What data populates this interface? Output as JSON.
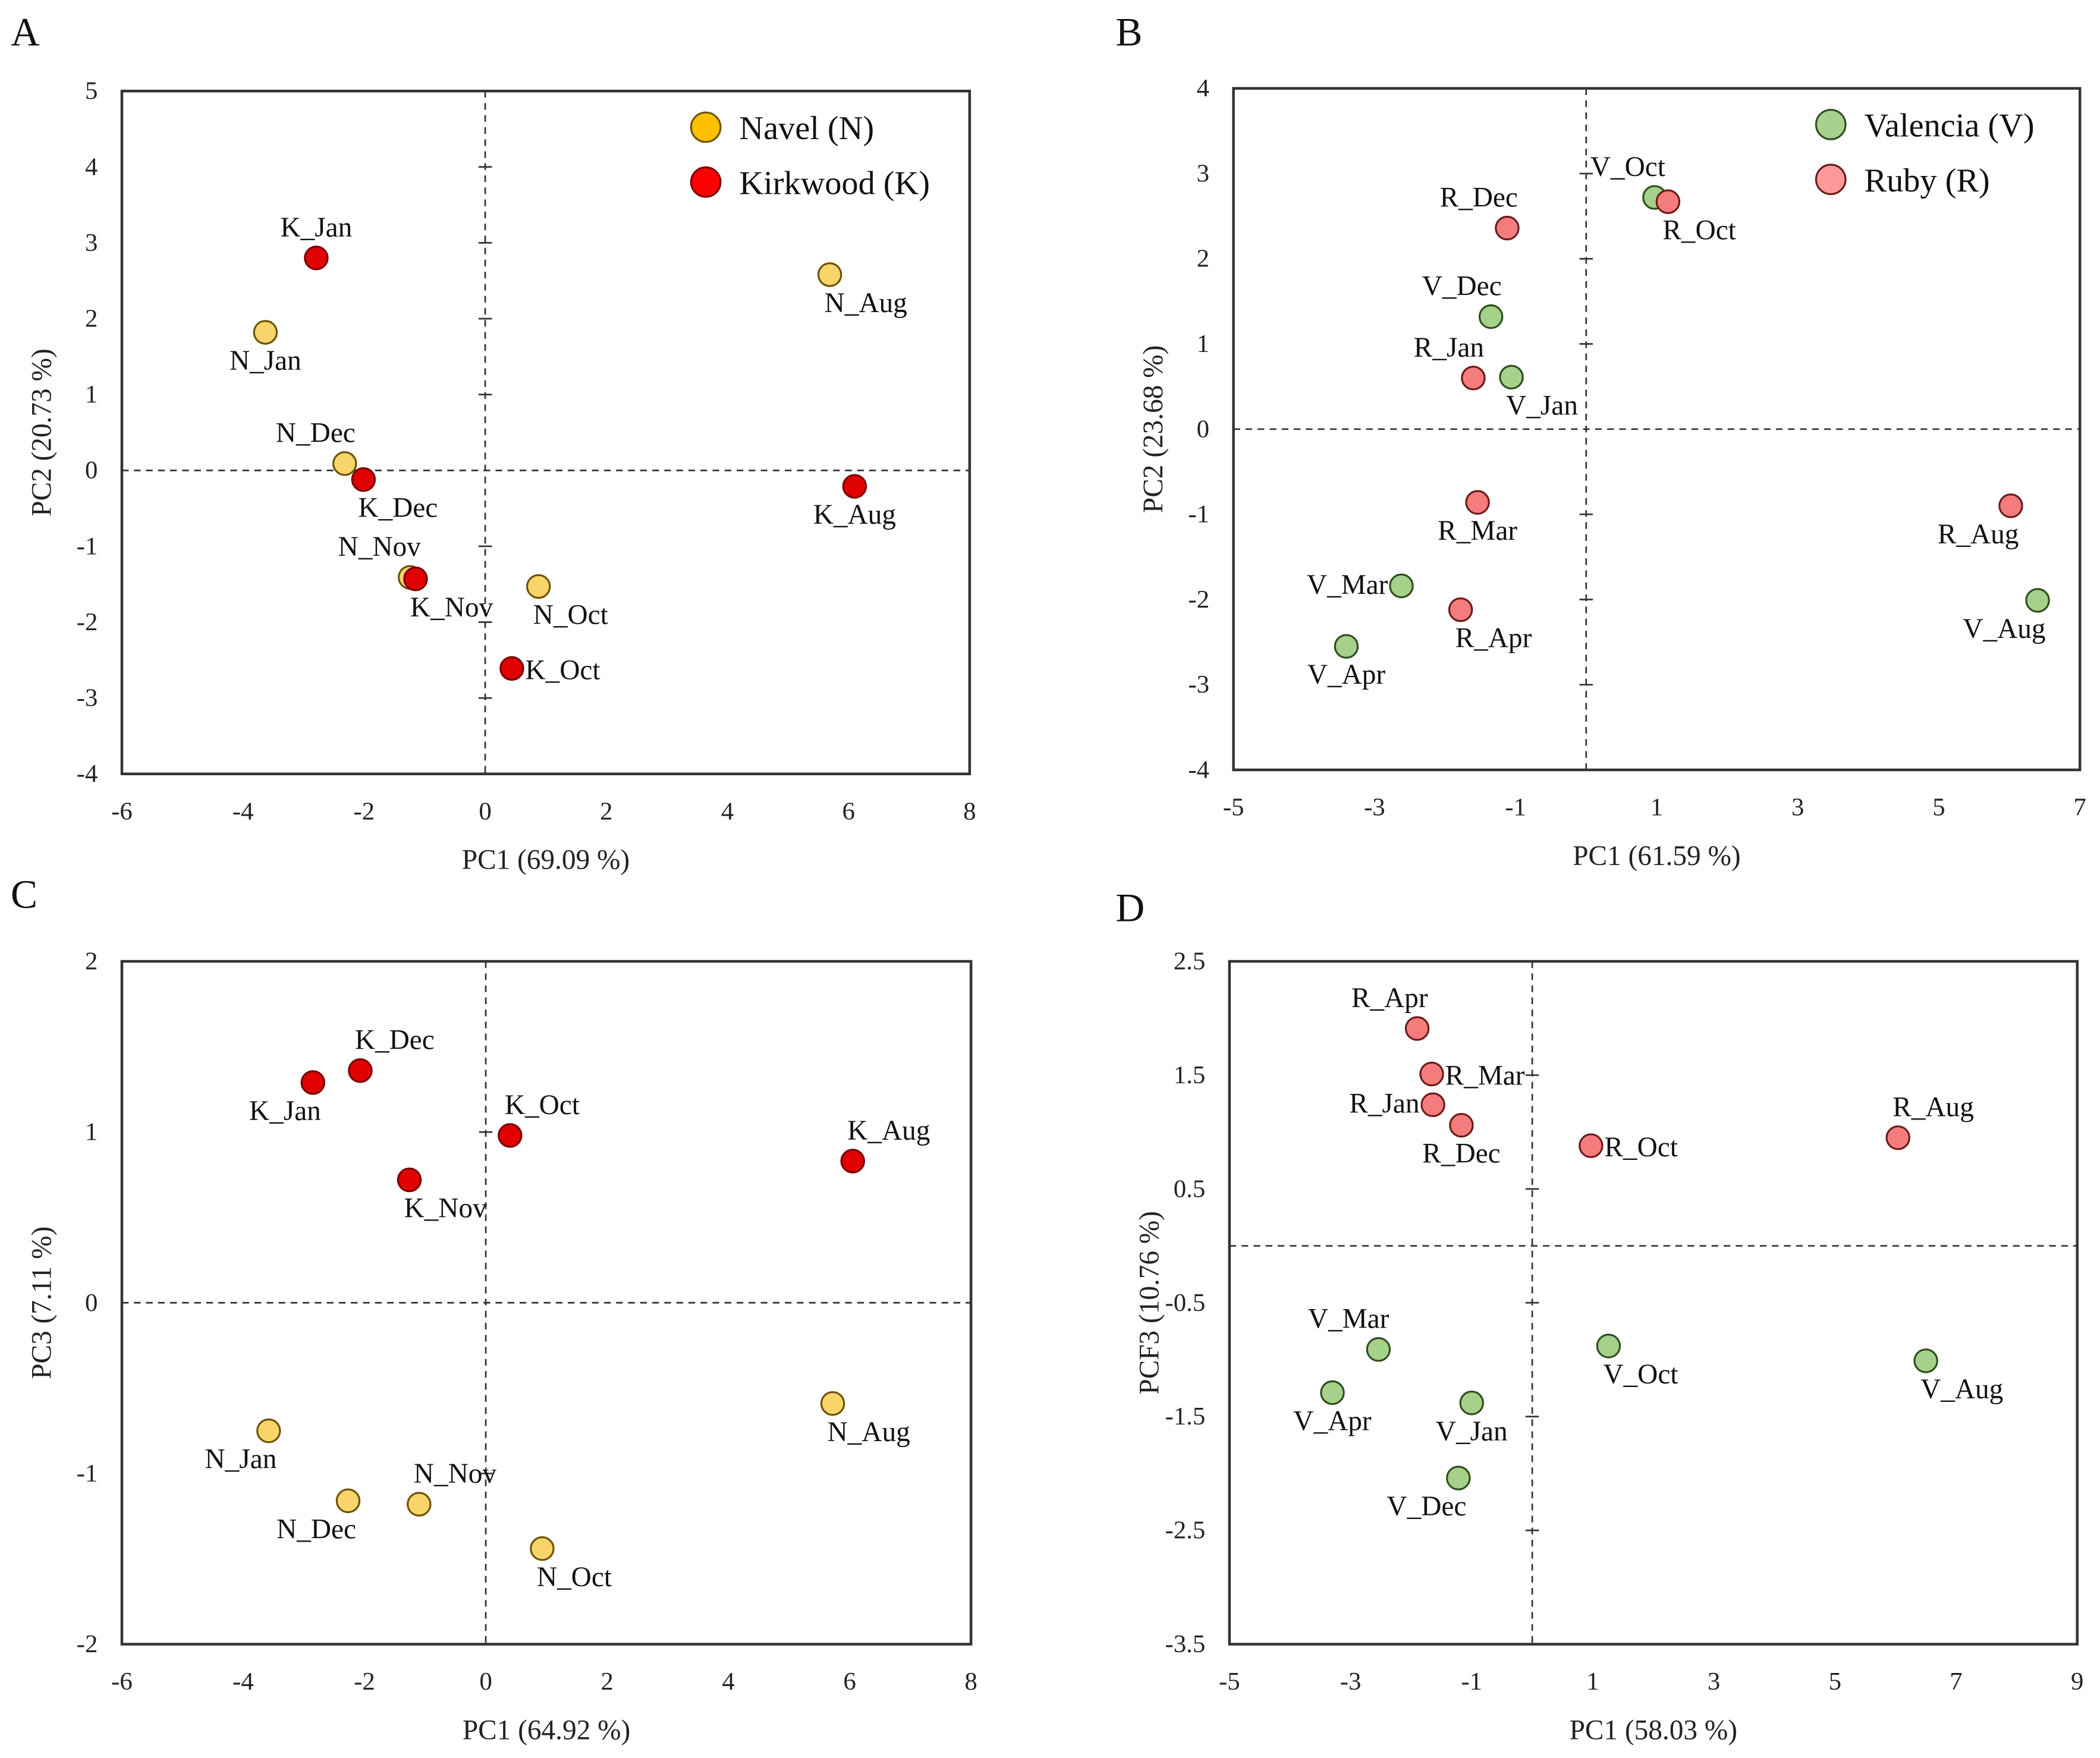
{
  "figure": {
    "panels": [
      "A",
      "B",
      "C",
      "D"
    ]
  },
  "chart_data": [
    {
      "panel": "A",
      "type": "scatter",
      "title": "",
      "xlabel": "PC1 (69.09 %)",
      "ylabel": "PC2 (20.73 %)",
      "xlim": [
        -6,
        8
      ],
      "ylim": [
        -4,
        5
      ],
      "xticks": [
        -6,
        -4,
        -2,
        0,
        2,
        4,
        6,
        8
      ],
      "yticks": [
        -4,
        -3,
        -2,
        -1,
        0,
        1,
        2,
        3,
        4,
        5
      ],
      "grid": false,
      "reference_lines": {
        "x": 0,
        "y": 0,
        "style": "dashed"
      },
      "legend": {
        "placement": "top-right",
        "entries": [
          {
            "name": "Navel (N)",
            "series": "N"
          },
          {
            "name": "Kirkwood (K)",
            "series": "K"
          }
        ]
      },
      "series": [
        {
          "key": "N",
          "name": "Navel (N)",
          "fill": "#F8D46A",
          "legend_fill": "#FFC000",
          "stroke": "#6B5200",
          "points": [
            {
              "label": "N_Jan",
              "x": -3.63,
              "y": 1.82,
              "pos": "below"
            },
            {
              "label": "N_Aug",
              "x": 5.69,
              "y": 2.58,
              "pos": "below-right"
            },
            {
              "label": "N_Dec",
              "x": -2.32,
              "y": 0.09,
              "pos": "above-left"
            },
            {
              "label": "N_Nov",
              "x": -1.24,
              "y": -1.41,
              "pos": "above-left"
            },
            {
              "label": "N_Oct",
              "x": 0.88,
              "y": -1.53,
              "pos": "below-right"
            }
          ]
        },
        {
          "key": "K",
          "name": "Kirkwood (K)",
          "fill": "#E00000",
          "legend_fill": "#FF0000",
          "stroke": "#7A0000",
          "points": [
            {
              "label": "K_Jan",
              "x": -2.79,
              "y": 2.8,
              "pos": "above"
            },
            {
              "label": "K_Dec",
              "x": -2.01,
              "y": -0.12,
              "pos": "below-right"
            },
            {
              "label": "K_Aug",
              "x": 6.1,
              "y": -0.21,
              "pos": "below"
            },
            {
              "label": "K_Nov",
              "x": -1.15,
              "y": -1.43,
              "pos": "below-right"
            },
            {
              "label": "K_Oct",
              "x": 0.44,
              "y": -2.61,
              "pos": "right"
            }
          ]
        }
      ]
    },
    {
      "panel": "B",
      "type": "scatter",
      "title": "",
      "xlabel": "PC1 (61.59 %)",
      "ylabel": "PC2 (23.68 %)",
      "xlim": [
        -5,
        7
      ],
      "ylim": [
        -4,
        4
      ],
      "xticks": [
        -5,
        -3,
        -1,
        1,
        3,
        5,
        7
      ],
      "yticks": [
        -4,
        -3,
        -2,
        -1,
        0,
        1,
        2,
        3,
        4
      ],
      "grid": false,
      "reference_lines": {
        "x": 0,
        "y": 0,
        "style": "dashed"
      },
      "legend": {
        "placement": "top-right",
        "entries": [
          {
            "name": "Valencia (V)",
            "series": "V"
          },
          {
            "name": "Ruby (R)",
            "series": "R"
          }
        ]
      },
      "series": [
        {
          "key": "V",
          "name": "Valencia (V)",
          "fill": "#A5D18A",
          "legend_fill": "#A9D18E",
          "stroke": "#2E4D1E",
          "points": [
            {
              "label": "V_Oct",
              "x": 0.97,
              "y": 2.72,
              "pos": "above-left"
            },
            {
              "label": "V_Dec",
              "x": -1.35,
              "y": 1.32,
              "pos": "above-left"
            },
            {
              "label": "V_Jan",
              "x": -1.06,
              "y": 0.61,
              "pos": "below-right"
            },
            {
              "label": "V_Mar",
              "x": -2.62,
              "y": -1.84,
              "pos": "left"
            },
            {
              "label": "V_Apr",
              "x": -3.4,
              "y": -2.55,
              "pos": "below"
            },
            {
              "label": "V_Aug",
              "x": 6.4,
              "y": -2.01,
              "pos": "below-left"
            }
          ]
        },
        {
          "key": "R",
          "name": "Ruby (R)",
          "fill": "#F47C7C",
          "legend_fill": "#FF9999",
          "stroke": "#6A1A1A",
          "points": [
            {
              "label": "R_Oct",
              "x": 1.16,
              "y": 2.67,
              "pos": "below-right"
            },
            {
              "label": "R_Dec",
              "x": -1.12,
              "y": 2.36,
              "pos": "above-left"
            },
            {
              "label": "R_Jan",
              "x": -1.6,
              "y": 0.6,
              "pos": "above-left"
            },
            {
              "label": "R_Mar",
              "x": -1.54,
              "y": -0.86,
              "pos": "below"
            },
            {
              "label": "R_Apr",
              "x": -1.78,
              "y": -2.12,
              "pos": "below-right"
            },
            {
              "label": "R_Aug",
              "x": 6.02,
              "y": -0.9,
              "pos": "below-left"
            }
          ]
        }
      ]
    },
    {
      "panel": "C",
      "type": "scatter",
      "title": "",
      "xlabel": "PC1 (64.92 %)",
      "ylabel": "PC3 (7.11 %)",
      "xlim": [
        -6,
        8
      ],
      "ylim": [
        -2,
        2
      ],
      "xticks": [
        -6,
        -4,
        -2,
        0,
        2,
        4,
        6,
        8
      ],
      "yticks": [
        -2,
        -1,
        0,
        1,
        2
      ],
      "grid": false,
      "reference_lines": {
        "x": 0,
        "y": 0,
        "style": "dashed"
      },
      "legend": null,
      "series": [
        {
          "key": "K",
          "name": "Kirkwood (K)",
          "fill": "#E00000",
          "stroke": "#7A0000",
          "points": [
            {
              "label": "K_Dec",
              "x": -2.07,
              "y": 1.36,
              "pos": "above-right"
            },
            {
              "label": "K_Jan",
              "x": -2.85,
              "y": 1.29,
              "pos": "below-left"
            },
            {
              "label": "K_Oct",
              "x": 0.4,
              "y": 0.98,
              "pos": "above-right"
            },
            {
              "label": "K_Nov",
              "x": -1.26,
              "y": 0.72,
              "pos": "below-right"
            },
            {
              "label": "K_Aug",
              "x": 6.05,
              "y": 0.83,
              "pos": "above-right"
            }
          ]
        },
        {
          "key": "N",
          "name": "Navel (N)",
          "fill": "#F8D46A",
          "stroke": "#6B5200",
          "points": [
            {
              "label": "N_Aug",
              "x": 5.72,
              "y": -0.59,
              "pos": "below-right"
            },
            {
              "label": "N_Jan",
              "x": -3.58,
              "y": -0.75,
              "pos": "below-left"
            },
            {
              "label": "N_Dec",
              "x": -2.27,
              "y": -1.16,
              "pos": "below-left"
            },
            {
              "label": "N_Nov",
              "x": -1.1,
              "y": -1.18,
              "pos": "above-right"
            },
            {
              "label": "N_Oct",
              "x": 0.93,
              "y": -1.44,
              "pos": "below-right"
            }
          ]
        }
      ]
    },
    {
      "panel": "D",
      "type": "scatter",
      "title": "",
      "xlabel": "PC1 (58.03 %)",
      "ylabel": "PCF3 (10.76 %)",
      "xlim": [
        -5,
        9
      ],
      "ylim": [
        -3.5,
        2.5
      ],
      "xticks": [
        -5,
        -3,
        -1,
        1,
        3,
        5,
        7,
        9
      ],
      "yticks": [
        -3.5,
        -2.5,
        -1.5,
        -0.5,
        0.5,
        1.5,
        2.5
      ],
      "grid": false,
      "reference_lines": {
        "x": 0,
        "y": 0,
        "style": "dashed"
      },
      "legend": null,
      "series": [
        {
          "key": "R",
          "name": "Ruby (R)",
          "fill": "#F47C7C",
          "stroke": "#6A1A1A",
          "points": [
            {
              "label": "R_Apr",
              "x": -1.9,
              "y": 1.91,
              "pos": "above-left"
            },
            {
              "label": "R_Mar",
              "x": -1.66,
              "y": 1.51,
              "pos": "right"
            },
            {
              "label": "R_Jan",
              "x": -1.64,
              "y": 1.24,
              "pos": "left"
            },
            {
              "label": "R_Dec",
              "x": -1.17,
              "y": 1.06,
              "pos": "below"
            },
            {
              "label": "R_Oct",
              "x": 0.97,
              "y": 0.88,
              "pos": "right"
            },
            {
              "label": "R_Aug",
              "x": 6.04,
              "y": 0.95,
              "pos": "above-right"
            }
          ]
        },
        {
          "key": "V",
          "name": "Valencia (V)",
          "fill": "#A5D18A",
          "stroke": "#2E4D1E",
          "points": [
            {
              "label": "V_Mar",
              "x": -2.54,
              "y": -0.91,
              "pos": "above-left"
            },
            {
              "label": "V_Oct",
              "x": 1.26,
              "y": -0.88,
              "pos": "below-right"
            },
            {
              "label": "V_Aug",
              "x": 6.5,
              "y": -1.01,
              "pos": "below-right"
            },
            {
              "label": "V_Apr",
              "x": -3.3,
              "y": -1.29,
              "pos": "below"
            },
            {
              "label": "V_Jan",
              "x": -1.0,
              "y": -1.38,
              "pos": "below"
            },
            {
              "label": "V_Dec",
              "x": -1.22,
              "y": -2.04,
              "pos": "below-left"
            }
          ]
        }
      ]
    }
  ]
}
